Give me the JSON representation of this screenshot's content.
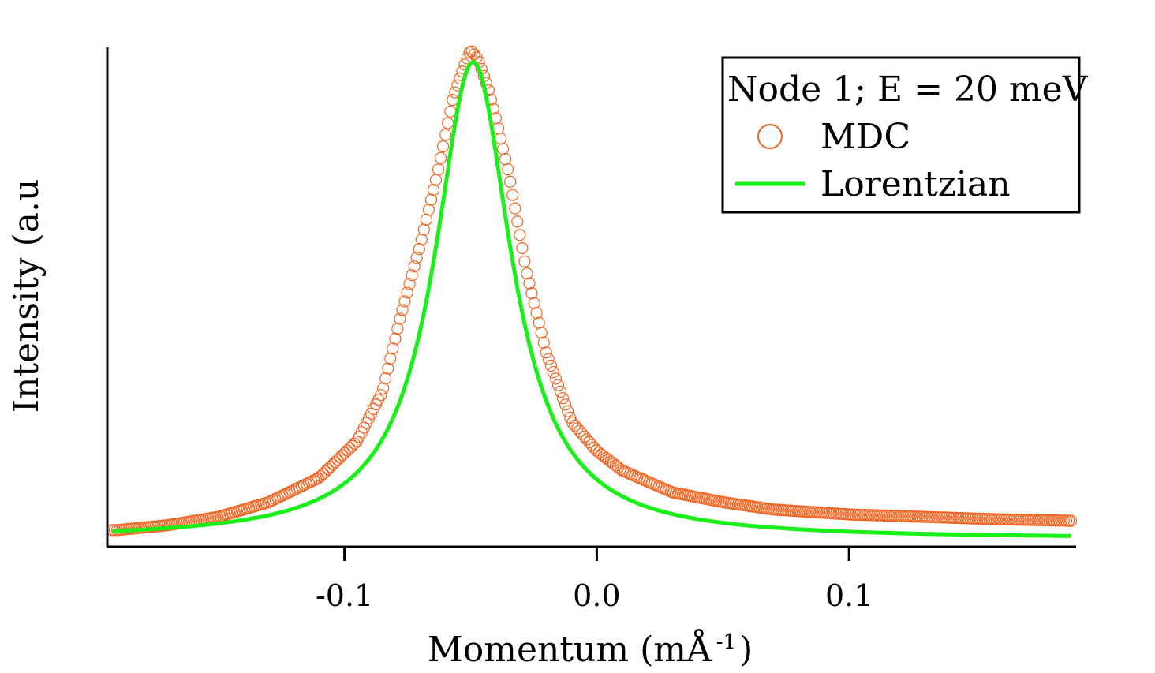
{
  "chart_data": {
    "type": "scatter",
    "xlabel": "Momentum (mÅ",
    "xlabel_sup": "-1",
    "xlabel_close": ")",
    "ylabel": "Intensity (a.u",
    "xlim": [
      -0.194,
      0.19
    ],
    "ylim": [
      0,
      1
    ],
    "x_ticks": [
      {
        "value": -0.1,
        "label": "-0.1"
      },
      {
        "value": 0.0,
        "label": "0.0"
      },
      {
        "value": 0.1,
        "label": "0.1"
      }
    ],
    "y_ticks_shown": false,
    "grid": false,
    "legend": {
      "position": "top-right",
      "title": "Node 1; E = 20 meV",
      "entries": [
        {
          "label": "MDC",
          "marker": "open-circle",
          "color": "#f26522"
        },
        {
          "label": "Lorentzian",
          "marker": "line",
          "color": "#19f019"
        }
      ]
    },
    "series": [
      {
        "name": "MDC",
        "kind": "scatter",
        "color": "#f26522",
        "x_range": [
          -0.192,
          0.188
        ],
        "peak_x": -0.05,
        "points": [
          [
            -0.19,
            0.018
          ],
          [
            -0.17,
            0.028
          ],
          [
            -0.15,
            0.045
          ],
          [
            -0.13,
            0.075
          ],
          [
            -0.11,
            0.125
          ],
          [
            -0.095,
            0.2
          ],
          [
            -0.085,
            0.3
          ],
          [
            -0.078,
            0.45
          ],
          [
            -0.07,
            0.6
          ],
          [
            -0.063,
            0.75
          ],
          [
            -0.057,
            0.9
          ],
          [
            -0.052,
            0.975
          ],
          [
            -0.05,
            1.0
          ],
          [
            -0.047,
            0.98
          ],
          [
            -0.043,
            0.92
          ],
          [
            -0.04,
            0.86
          ],
          [
            -0.035,
            0.75
          ],
          [
            -0.028,
            0.55
          ],
          [
            -0.02,
            0.38
          ],
          [
            -0.01,
            0.24
          ],
          [
            0.0,
            0.18
          ],
          [
            0.01,
            0.14
          ],
          [
            0.03,
            0.095
          ],
          [
            0.05,
            0.075
          ],
          [
            0.07,
            0.06
          ],
          [
            0.1,
            0.05
          ],
          [
            0.13,
            0.045
          ],
          [
            0.16,
            0.04
          ],
          [
            0.188,
            0.037
          ]
        ]
      },
      {
        "name": "Lorentzian",
        "kind": "line",
        "color": "#19f019",
        "model": "lorentzian",
        "center": -0.049,
        "hwhm": 0.0185,
        "amplitude": 0.975,
        "background": 0.0,
        "x_range": [
          -0.192,
          0.188
        ]
      }
    ]
  }
}
